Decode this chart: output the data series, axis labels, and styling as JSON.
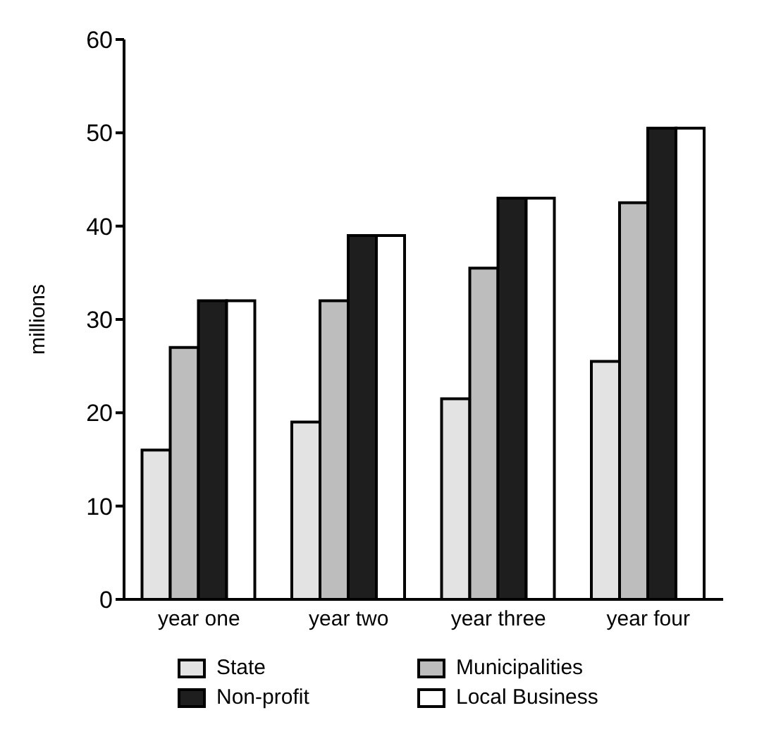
{
  "chart_data": {
    "type": "bar",
    "ylabel": "millions",
    "categories": [
      "year one",
      "year two",
      "year three",
      "year four"
    ],
    "series": [
      {
        "name": "State",
        "color": "#e3e3e3",
        "values": [
          16,
          19,
          21.5,
          25.5
        ]
      },
      {
        "name": "Municipalities",
        "color": "#bdbdbd",
        "values": [
          27,
          32,
          35.5,
          42.5
        ]
      },
      {
        "name": "Non-profit",
        "color": "#1e1e1e",
        "values": [
          32,
          39,
          43,
          50.5
        ]
      },
      {
        "name": "Local Business",
        "color": "#ffffff",
        "values": [
          32,
          39,
          43,
          50.5
        ]
      }
    ],
    "ylim": [
      0,
      60
    ],
    "yticks": [
      0,
      10,
      20,
      30,
      40,
      50,
      60
    ],
    "legend": "bottom"
  }
}
